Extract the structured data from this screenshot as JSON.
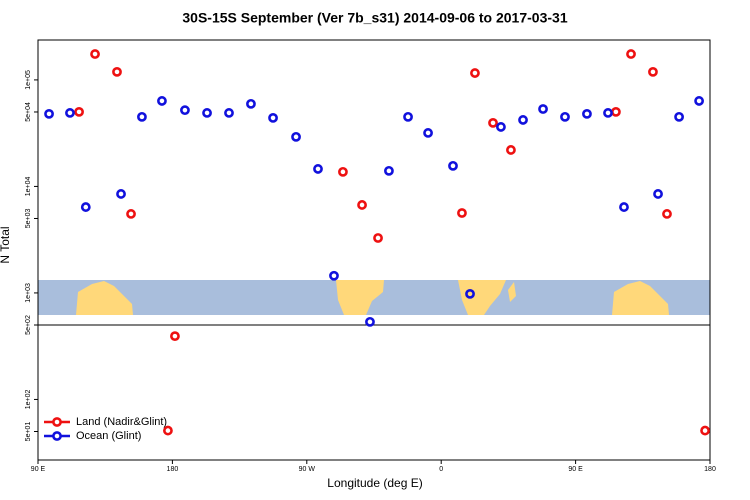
{
  "chart_data": {
    "type": "scatter",
    "title": "30S-15S September (Ver 7b_s31)   2014-09-06 to 2017-03-31",
    "x_label": "Longitude (deg E)",
    "y_label": "N Total",
    "log_y": true,
    "panel_break": 500,
    "legend": "lower left",
    "xlim": [
      90,
      540
    ],
    "xticks": [
      {
        "value": 90,
        "label": "90 E"
      },
      {
        "value": 180,
        "label": "180"
      },
      {
        "value": 270,
        "label": "90 W"
      },
      {
        "value": 360,
        "label": "0"
      },
      {
        "value": 450,
        "label": "90 E"
      },
      {
        "value": 540,
        "label": "180"
      }
    ],
    "ylim": [
      27,
      237000
    ],
    "yticks": [
      {
        "value": 50,
        "label": "5e+01"
      },
      {
        "value": 100,
        "label": "1e+02"
      },
      {
        "value": 500,
        "label": "5e+02"
      },
      {
        "value": 1000,
        "label": "1e+03"
      },
      {
        "value": 5000,
        "label": "5e+03"
      },
      {
        "value": 10000,
        "label": "1e+04"
      },
      {
        "value": 50000,
        "label": "5e+04"
      },
      {
        "value": 100000,
        "label": "1e+05"
      }
    ],
    "series": [
      {
        "name": "Land (Nadir&Glint)",
        "color": "#ee1111",
        "x": [
          117.5,
          128.2,
          142.9,
          152.3,
          181.7,
          177,
          294.2,
          307,
          317.7,
          373.9,
          382.6,
          394.7,
          406.7,
          477,
          487.1,
          501.8,
          511.2,
          536.7
        ],
        "values": [
          50100,
          175000,
          119000,
          5520,
          393,
          51,
          13700,
          6700,
          3280,
          5630,
          116000,
          39500,
          22000,
          50100,
          175000,
          119000,
          5520,
          51
        ]
      },
      {
        "name": "Ocean (Glint)",
        "color": "#1111dd",
        "x": [
          97.4,
          111.4,
          122,
          145.6,
          159.6,
          173,
          188.4,
          203.2,
          217.9,
          232.6,
          247.4,
          262.8,
          277.5,
          288.2,
          312.3,
          325,
          337.8,
          351.2,
          367.9,
          379.3,
          400,
          414.8,
          428.2,
          442.9,
          457.6,
          471.7,
          482.4,
          505.2,
          519.3,
          532.7
        ],
        "values": [
          48000,
          49000,
          6400,
          8500,
          45000,
          63500,
          52000,
          49000,
          49000,
          59600,
          44000,
          29200,
          14600,
          1450,
          535,
          14000,
          45000,
          31800,
          15600,
          980,
          36200,
          42100,
          53300,
          45000,
          48000,
          49000,
          6400,
          8500,
          45000,
          63500
        ]
      }
    ]
  }
}
